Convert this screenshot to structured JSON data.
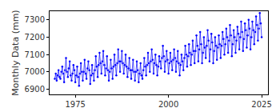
{
  "chart_data": {
    "type": "line",
    "y_label": "Monthly Data (mm)",
    "color": "#0000ff",
    "marker": "dot",
    "grid": false,
    "xlim": [
      1968.1,
      2026.7
    ],
    "xticks": [
      1975,
      2000,
      2025
    ],
    "ylim": [
      6870,
      7350
    ],
    "yticks": [
      6900,
      7000,
      7100,
      7200,
      7300
    ],
    "x": [
      1969.5,
      1969.75,
      1970,
      1970.25,
      1970.5,
      1970.75,
      1971,
      1971.25,
      1971.5,
      1971.75,
      1972,
      1972.25,
      1972.5,
      1972.75,
      1973,
      1973.25,
      1973.5,
      1973.75,
      1974,
      1974.25,
      1974.5,
      1974.75,
      1975,
      1975.25,
      1975.5,
      1975.75,
      1976,
      1976.25,
      1976.5,
      1976.75,
      1977,
      1977.25,
      1977.5,
      1977.75,
      1978,
      1978.25,
      1978.5,
      1978.75,
      1979,
      1979.25,
      1979.5,
      1979.75,
      1980,
      1980.25,
      1980.5,
      1980.75,
      1981,
      1981.25,
      1981.5,
      1981.75,
      1982,
      1982.25,
      1982.5,
      1982.75,
      1983,
      1983.25,
      1983.5,
      1983.75,
      1984,
      1984.25,
      1984.5,
      1984.75,
      1985,
      1985.25,
      1985.5,
      1985.75,
      1986,
      1986.25,
      1986.5,
      1986.75,
      1987,
      1987.25,
      1987.5,
      1987.75,
      1988,
      1988.25,
      1988.5,
      1988.75,
      1989,
      1989.25,
      1989.5,
      1989.75,
      1990,
      1990.25,
      1990.5,
      1990.75,
      1991,
      1991.25,
      1991.5,
      1991.75,
      1992,
      1992.25,
      1992.5,
      1992.75,
      1993,
      1993.25,
      1993.5,
      1993.75,
      1994,
      1994.25,
      1994.5,
      1994.75,
      1995,
      1995.25,
      1995.5,
      1995.75,
      1996,
      1996.25,
      1996.5,
      1996.75,
      1997,
      1997.25,
      1997.5,
      1997.75,
      1998,
      1998.25,
      1998.5,
      1998.75,
      1999,
      1999.25,
      1999.5,
      1999.75,
      2000,
      2000.25,
      2000.5,
      2000.75,
      2001,
      2001.25,
      2001.5,
      2001.75,
      2002,
      2002.25,
      2002.5,
      2002.75,
      2003,
      2003.25,
      2003.5,
      2003.75,
      2004,
      2004.25,
      2004.5,
      2004.75,
      2005,
      2005.25,
      2005.5,
      2005.75,
      2006,
      2006.25,
      2006.5,
      2006.75,
      2007,
      2007.25,
      2007.5,
      2007.75,
      2008,
      2008.25,
      2008.5,
      2008.75,
      2009,
      2009.25,
      2009.5,
      2009.75,
      2010,
      2010.25,
      2010.5,
      2010.75,
      2011,
      2011.25,
      2011.5,
      2011.75,
      2012,
      2012.25,
      2012.5,
      2012.75,
      2013,
      2013.25,
      2013.5,
      2013.75,
      2014,
      2014.25,
      2014.5,
      2014.75,
      2015,
      2015.25,
      2015.5,
      2015.75,
      2016,
      2016.25,
      2016.5,
      2016.75,
      2017,
      2017.25,
      2017.5,
      2017.75,
      2018,
      2018.25,
      2018.5,
      2018.75,
      2019,
      2019.25,
      2019.5,
      2019.75,
      2020,
      2020.25,
      2020.5,
      2020.75,
      2021,
      2021.25,
      2021.5,
      2021.75,
      2022,
      2022.25,
      2022.5,
      2022.75,
      2023,
      2023.25,
      2023.5,
      2023.75,
      2024,
      2024.25,
      2024.5,
      2024.75,
      2025
    ],
    "values": [
      6960,
      6990,
      6950,
      6980,
      7010,
      6970,
      6960,
      7000,
      7030,
      6990,
      6940,
      7010,
      7080,
      7000,
      6970,
      7020,
      7060,
      6980,
      6950,
      6990,
      7040,
      7010,
      6940,
      6980,
      7030,
      6970,
      6920,
      6990,
      7050,
      7000,
      6950,
      7000,
      7070,
      6990,
      6960,
      7020,
      7060,
      7010,
      6930,
      6980,
      7040,
      6990,
      6950,
      7010,
      7090,
      7030,
      6970,
      7040,
      7110,
      7050,
      6990,
      7060,
      7120,
      7040,
      6980,
      7020,
      7090,
      7010,
      6950,
      7000,
      7070,
      7020,
      6960,
      7030,
      7100,
      7040,
      6980,
      7050,
      7130,
      7060,
      7000,
      7060,
      7120,
      7050,
      6990,
      7040,
      7100,
      7030,
      6970,
      7020,
      7080,
      7010,
      6960,
      7010,
      7070,
      7000,
      6950,
      7000,
      7060,
      7010,
      6940,
      6990,
      7050,
      6980,
      6960,
      7010,
      7080,
      7030,
      6980,
      7040,
      7110,
      7050,
      7000,
      7060,
      7130,
      7070,
      6990,
      7050,
      7100,
      7040,
      6980,
      7030,
      7090,
      7060,
      7020,
      7080,
      7150,
      7090,
      7000,
      7060,
      7120,
      7070,
      6990,
      7050,
      7110,
      7060,
      7010,
      7070,
      7130,
      7080,
      7000,
      7060,
      7120,
      7050,
      6980,
      7040,
      7100,
      7060,
      7010,
      7080,
      7150,
      7100,
      7030,
      7090,
      7160,
      7110,
      7040,
      7100,
      7180,
      7120,
      7050,
      7120,
      7210,
      7150,
      7060,
      7130,
      7230,
      7160,
      7050,
      7110,
      7200,
      7140,
      7080,
      7150,
      7240,
      7180,
      7060,
      7130,
      7220,
      7170,
      7050,
      7120,
      7200,
      7150,
      7070,
      7140,
      7210,
      7160,
      7080,
      7150,
      7230,
      7190,
      7100,
      7160,
      7250,
      7200,
      7110,
      7180,
      7270,
      7210,
      7090,
      7160,
      7240,
      7200,
      7110,
      7180,
      7260,
      7220,
      7130,
      7200,
      7290,
      7230,
      7120,
      7190,
      7280,
      7240,
      7140,
      7210,
      7300,
      7250,
      7130,
      7200,
      7290,
      7240,
      7160,
      7230,
      7320,
      7270,
      7180,
      7250,
      7340,
      7280,
      7200
    ]
  }
}
